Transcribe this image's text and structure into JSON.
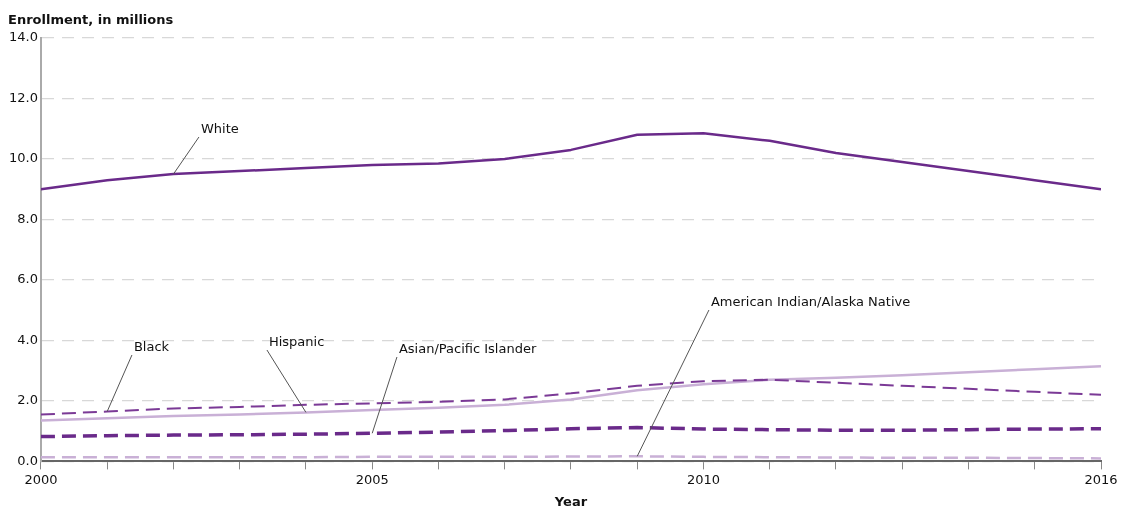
{
  "chart_data": {
    "type": "line",
    "ylabel": "Enrollment, in millions",
    "xlabel": "Year",
    "x": [
      2000,
      2001,
      2002,
      2003,
      2004,
      2005,
      2006,
      2007,
      2008,
      2009,
      2010,
      2011,
      2012,
      2013,
      2014,
      2015,
      2016
    ],
    "xlim": [
      2000,
      2016
    ],
    "xticks": [
      2000,
      {
        "value": 2001,
        "label": null
      },
      {
        "value": 2002,
        "label": null
      },
      {
        "value": 2003,
        "label": null
      },
      {
        "value": 2004,
        "label": null
      },
      2005,
      {
        "value": 2006,
        "label": null
      },
      {
        "value": 2007,
        "label": null
      },
      {
        "value": 2008,
        "label": null
      },
      {
        "value": 2009,
        "label": null
      },
      2010,
      {
        "value": 2011,
        "label": null
      },
      {
        "value": 2012,
        "label": null
      },
      {
        "value": 2013,
        "label": null
      },
      {
        "value": 2014,
        "label": null
      },
      {
        "value": 2015,
        "label": null
      },
      2016
    ],
    "ylim": [
      0,
      14
    ],
    "yticks": [
      {
        "value": 0,
        "label": "0.0"
      },
      {
        "value": 2,
        "label": "2.0"
      },
      {
        "value": 4,
        "label": "4.0"
      },
      {
        "value": 6,
        "label": "6.0"
      },
      {
        "value": 8,
        "label": "8.0"
      },
      {
        "value": 10,
        "label": "10.0"
      },
      {
        "value": 12,
        "label": "12.0"
      },
      {
        "value": 14,
        "label": "14.0"
      }
    ],
    "grid": "y",
    "legend": false,
    "marker": "none",
    "series": [
      {
        "name": "White",
        "color": "#6a2a8a",
        "line_style": "solid",
        "values": [
          9.0,
          9.3,
          9.5,
          9.6,
          9.7,
          9.8,
          9.85,
          10.0,
          10.3,
          10.8,
          10.85,
          10.6,
          10.2,
          9.9,
          9.6,
          9.3,
          9.0
        ]
      },
      {
        "name": "Black",
        "color": "#7b3a96",
        "line_style": "dashed",
        "values": [
          1.55,
          1.65,
          1.75,
          1.8,
          1.87,
          1.92,
          1.97,
          2.05,
          2.25,
          2.5,
          2.65,
          2.7,
          2.6,
          2.5,
          2.4,
          2.3,
          2.2
        ]
      },
      {
        "name": "Hispanic",
        "color": "#c9b0d6",
        "line_style": "solid",
        "values": [
          1.35,
          1.43,
          1.5,
          1.55,
          1.62,
          1.7,
          1.77,
          1.87,
          2.05,
          2.35,
          2.55,
          2.7,
          2.77,
          2.85,
          2.95,
          3.05,
          3.15
        ]
      },
      {
        "name": "Asian/Pacific Islander",
        "color": "#6a2a8a",
        "line_style": "dashed",
        "values": [
          0.82,
          0.85,
          0.87,
          0.88,
          0.9,
          0.93,
          0.97,
          1.02,
          1.08,
          1.12,
          1.07,
          1.05,
          1.03,
          1.03,
          1.05,
          1.07,
          1.08
        ]
      },
      {
        "name": "American Indian/Alaska Native",
        "color": "#c9b0d6",
        "line_style": "dashed",
        "values": [
          0.14,
          0.14,
          0.14,
          0.14,
          0.14,
          0.15,
          0.15,
          0.15,
          0.16,
          0.17,
          0.15,
          0.14,
          0.13,
          0.12,
          0.12,
          0.11,
          0.1
        ]
      }
    ]
  }
}
